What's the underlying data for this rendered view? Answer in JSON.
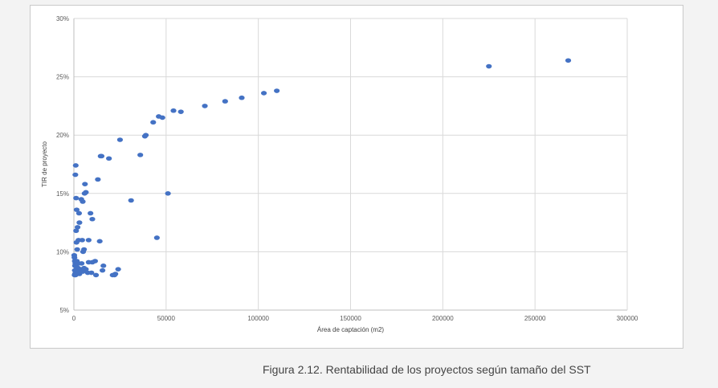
{
  "figure": {
    "caption": "Figura 2.12. Rentabilidad de los proyectos según tamaño del SST"
  },
  "colors": {
    "marker": "#4472c4",
    "grid": "#d9d9d9",
    "axis": "#bfbfbf",
    "frame_border": "#c9c9c9",
    "background": "#f3f3f3"
  },
  "chart_data": {
    "type": "scatter",
    "title": "",
    "xlabel": "Área de captación (m2)",
    "ylabel": "TIR de proyecto",
    "xlim": [
      0,
      300000
    ],
    "ylim": [
      5,
      30
    ],
    "x_ticks": [
      0,
      50000,
      100000,
      150000,
      200000,
      250000,
      300000
    ],
    "x_tick_labels": [
      "0",
      "50000",
      "100000",
      "150000",
      "200000",
      "250000",
      "300000"
    ],
    "y_ticks": [
      5,
      10,
      15,
      20,
      25,
      30
    ],
    "y_tick_labels": [
      "5%",
      "10%",
      "15%",
      "20%",
      "25%",
      "30%"
    ],
    "grid": true,
    "legend": "none",
    "points": [
      [
        268000,
        26.4
      ],
      [
        225000,
        25.9
      ],
      [
        110000,
        23.8
      ],
      [
        103000,
        23.6
      ],
      [
        91000,
        23.2
      ],
      [
        82000,
        22.9
      ],
      [
        71000,
        22.5
      ],
      [
        58000,
        22.0
      ],
      [
        54000,
        22.1
      ],
      [
        48000,
        21.5
      ],
      [
        46000,
        21.6
      ],
      [
        43000,
        21.1
      ],
      [
        39000,
        20.0
      ],
      [
        38500,
        19.9
      ],
      [
        36000,
        18.3
      ],
      [
        25000,
        19.6
      ],
      [
        19000,
        18.0
      ],
      [
        15000,
        18.2
      ],
      [
        14500,
        18.2
      ],
      [
        13000,
        16.2
      ],
      [
        51000,
        15.0
      ],
      [
        31000,
        14.4
      ],
      [
        45000,
        11.2
      ],
      [
        14000,
        10.9
      ],
      [
        1000,
        17.4
      ],
      [
        800,
        16.6
      ],
      [
        6000,
        15.8
      ],
      [
        6500,
        15.1
      ],
      [
        5800,
        15.0
      ],
      [
        1200,
        14.6
      ],
      [
        4000,
        14.5
      ],
      [
        4800,
        14.3
      ],
      [
        9000,
        13.3
      ],
      [
        10000,
        12.8
      ],
      [
        1500,
        13.6
      ],
      [
        2800,
        13.3
      ],
      [
        3000,
        12.5
      ],
      [
        2000,
        12.1
      ],
      [
        1200,
        11.8
      ],
      [
        4500,
        11.0
      ],
      [
        8000,
        11.0
      ],
      [
        2500,
        11.0
      ],
      [
        1400,
        10.8
      ],
      [
        5500,
        10.2
      ],
      [
        5000,
        10.0
      ],
      [
        1800,
        10.2
      ],
      [
        8000,
        9.1
      ],
      [
        10000,
        9.1
      ],
      [
        11500,
        9.2
      ],
      [
        16000,
        8.8
      ],
      [
        24000,
        8.5
      ],
      [
        15500,
        8.4
      ],
      [
        6500,
        8.5
      ],
      [
        7500,
        8.2
      ],
      [
        9500,
        8.2
      ],
      [
        12000,
        8.0
      ],
      [
        21000,
        8.0
      ],
      [
        22000,
        8.0
      ],
      [
        22500,
        8.1
      ],
      [
        300,
        9.5
      ],
      [
        500,
        9.2
      ],
      [
        1600,
        9.2
      ],
      [
        2600,
        9.0
      ],
      [
        4200,
        9.0
      ],
      [
        600,
        8.8
      ],
      [
        1400,
        8.7
      ],
      [
        2300,
        8.6
      ],
      [
        3500,
        8.5
      ],
      [
        500,
        8.4
      ],
      [
        1100,
        8.3
      ],
      [
        2100,
        8.2
      ],
      [
        3000,
        8.1
      ],
      [
        400,
        8.0
      ],
      [
        900,
        8.0
      ],
      [
        1300,
        8.1
      ],
      [
        2700,
        8.3
      ],
      [
        4800,
        8.3
      ],
      [
        5500,
        8.6
      ],
      [
        200,
        9.7
      ],
      [
        800,
        9.0
      ],
      [
        600,
        8.1
      ],
      [
        1700,
        8.5
      ]
    ]
  }
}
